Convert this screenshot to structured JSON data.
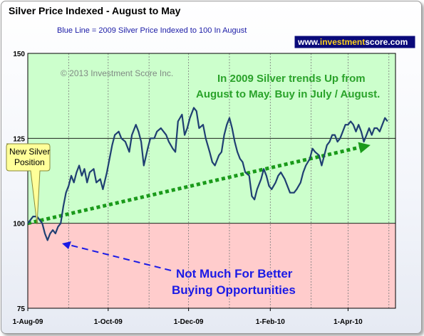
{
  "chart_data": {
    "type": "line",
    "title": "Silver Price Indexed - August to May",
    "subtitle": "Blue Line =  2009 Silver Price Indexed to 100 In August",
    "xlabel": "",
    "ylabel": "",
    "ylim": [
      75,
      150
    ],
    "y_ticks": [
      "150",
      "125",
      "100",
      "75"
    ],
    "x_ticks": [
      "1-Aug-09",
      "1-Oct-09",
      "1-Dec-09",
      "1-Feb-10",
      "1-Apr-10"
    ],
    "grid": "vertical dotted lines at month ticks",
    "background_zones": [
      {
        "from": 100,
        "to": 150,
        "color": "#ccffcc"
      },
      {
        "from": 75,
        "to": 100,
        "color": "#ffcccc"
      }
    ],
    "series": [
      {
        "color": "#1f3f72",
        "x_days": [
          0,
          2,
          4,
          7,
          9,
          11,
          13,
          15,
          17,
          19,
          21,
          23,
          25,
          27,
          29,
          31,
          33,
          35,
          37,
          39,
          41,
          43,
          45,
          47,
          50,
          52,
          55,
          57,
          60,
          62,
          64,
          66,
          69,
          71,
          74,
          77,
          79,
          82,
          84,
          86,
          88,
          91,
          93,
          96,
          98,
          101,
          103,
          105,
          107,
          110,
          112,
          114,
          117,
          119,
          121,
          123,
          126,
          128,
          130,
          133,
          135,
          138,
          140,
          142,
          145,
          147,
          149,
          151,
          153,
          155,
          157,
          159,
          161,
          163,
          165,
          168,
          170,
          172,
          174,
          177,
          179,
          181,
          183,
          185,
          188,
          190,
          192,
          195,
          197,
          199,
          202,
          204,
          207,
          209,
          211,
          214,
          216,
          218,
          221,
          223,
          225,
          227,
          229,
          231,
          233,
          235,
          237,
          239,
          241,
          243,
          245,
          247,
          249,
          251,
          253,
          255,
          257,
          259,
          261,
          263,
          265,
          267,
          269,
          271,
          273
        ],
        "values": [
          100,
          101,
          102,
          102,
          101,
          100,
          97,
          95,
          97,
          98,
          97,
          99,
          100,
          105,
          109,
          111,
          114,
          112,
          115,
          117,
          114,
          116,
          112,
          115,
          116,
          112,
          113,
          110,
          115,
          119,
          123,
          126,
          127,
          125,
          124,
          121,
          126,
          129,
          127,
          124,
          117,
          122,
          125,
          125,
          127,
          128,
          127,
          126,
          124,
          122,
          121,
          130,
          132,
          126,
          128,
          131,
          134,
          133,
          128,
          129,
          125,
          121,
          118,
          117,
          120,
          121,
          126,
          129,
          131,
          128,
          124,
          121,
          119,
          118,
          115,
          114,
          108,
          107,
          110,
          113,
          116,
          114,
          111,
          110,
          112,
          114,
          115,
          113,
          111,
          109,
          109,
          110,
          112,
          115,
          117,
          119,
          122,
          121,
          120,
          117,
          120,
          123,
          124,
          126,
          126,
          124,
          125,
          127,
          129,
          129,
          130,
          129,
          127,
          129,
          127,
          124,
          126,
          128,
          126,
          128,
          128,
          127,
          129,
          131,
          130
        ]
      }
    ],
    "annotations": {
      "copyright": "© 2013 Investment Score Inc.",
      "trend_line1": "In 2009 Silver trends Up from",
      "trend_line2": "August to May.  Buy in July / August.",
      "callout_line1": "New Silver",
      "callout_line2": "Position",
      "dip_line1": "Not Much For Better",
      "dip_line2": "Buying Opportunities",
      "trend_arrow": {
        "from_day": 0,
        "from_value": 100,
        "to_day": 260,
        "to_value": 123
      }
    },
    "colors": {
      "line": "#1f3f72",
      "trend_arrow": "#1a9a1a",
      "dip_arrow": "#1a1ae6",
      "green_zone": "#ccffcc",
      "red_zone": "#ffcccc"
    }
  },
  "brand": {
    "prefix": "www.",
    "accent": "investment",
    "suffix": "score.com",
    "bg": "#0a0a7a"
  }
}
